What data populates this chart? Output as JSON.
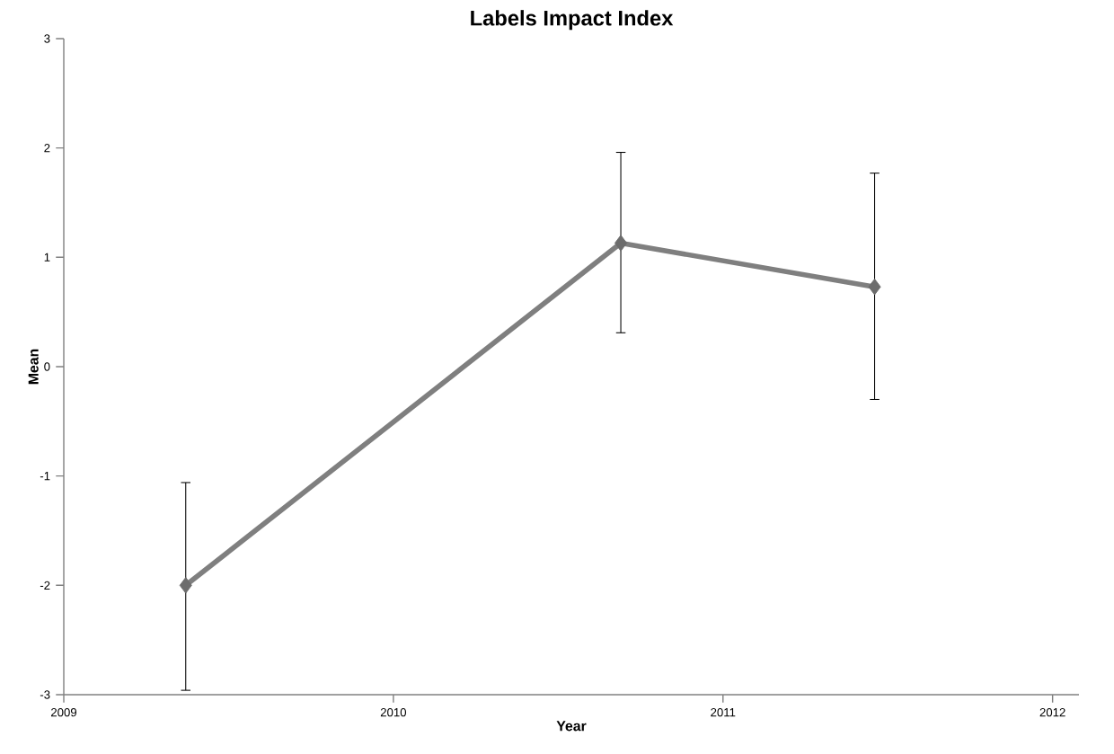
{
  "chart_data": {
    "type": "line",
    "title": "Labels Impact Index",
    "xlabel": "Year",
    "ylabel": "Mean",
    "x": [
      2009.37,
      2010.69,
      2011.46
    ],
    "series": [
      {
        "color": "#7f7f7f",
        "values": [
          -2.0,
          1.13,
          0.73
        ],
        "errors": [
          [
            -2.96,
            -1.06
          ],
          [
            0.31,
            1.96
          ],
          [
            -0.3,
            1.77
          ]
        ]
      }
    ],
    "xlim": [
      2009,
      2012.08
    ],
    "xticks": [
      2009,
      2010,
      2011,
      2012
    ],
    "ylim": [
      -3,
      3
    ],
    "yticks": [
      -3,
      -2,
      -1,
      0,
      1,
      2,
      3
    ],
    "marker": "diamond",
    "line_style": "solid"
  }
}
